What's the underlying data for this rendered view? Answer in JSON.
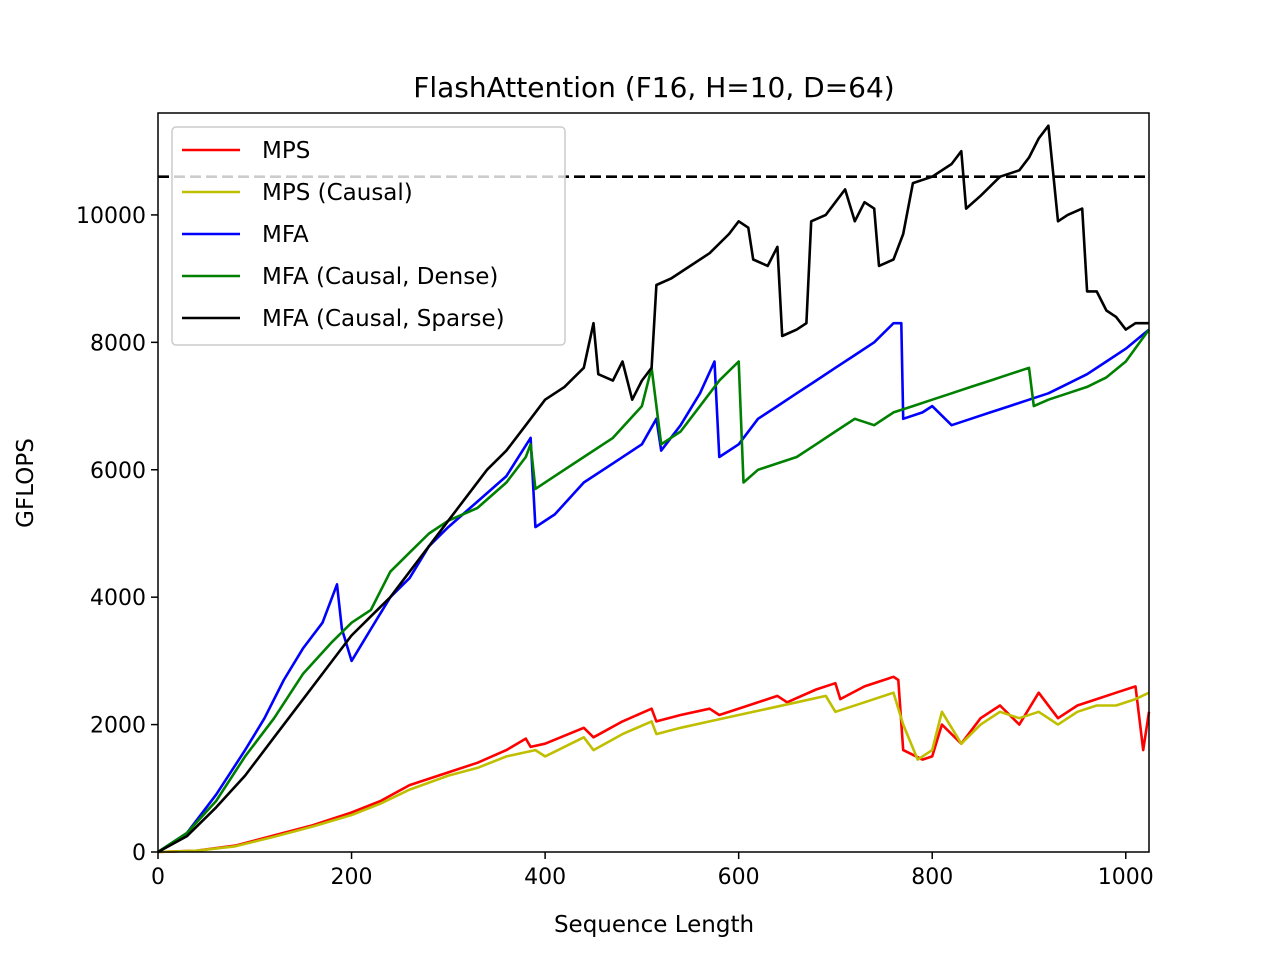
{
  "chart_data": {
    "type": "line",
    "title": "FlashAttention (F16, H=10, D=64)",
    "xlabel": "Sequence Length",
    "ylabel": "GFLOPS",
    "xlim": [
      0,
      1024
    ],
    "ylim": [
      0,
      11600
    ],
    "xticks": [
      0,
      200,
      400,
      600,
      800,
      1000
    ],
    "yticks": [
      0,
      2000,
      4000,
      6000,
      8000,
      10000
    ],
    "xtick_labels": [
      "0",
      "200",
      "400",
      "600",
      "800",
      "1000"
    ],
    "ytick_labels": [
      "0",
      "2000",
      "4000",
      "6000",
      "8000",
      "10000"
    ],
    "grid": false,
    "legend_position": "upper left",
    "reference_line": {
      "y": 10600,
      "style": "dashed",
      "color": "#000000"
    },
    "series": [
      {
        "name": "MPS",
        "color": "#ff0000",
        "points": [
          [
            0,
            0
          ],
          [
            40,
            20
          ],
          [
            80,
            100
          ],
          [
            120,
            260
          ],
          [
            160,
            420
          ],
          [
            200,
            620
          ],
          [
            230,
            800
          ],
          [
            260,
            1050
          ],
          [
            300,
            1250
          ],
          [
            330,
            1400
          ],
          [
            360,
            1600
          ],
          [
            380,
            1780
          ],
          [
            385,
            1650
          ],
          [
            400,
            1700
          ],
          [
            440,
            1950
          ],
          [
            450,
            1800
          ],
          [
            480,
            2050
          ],
          [
            510,
            2250
          ],
          [
            515,
            2050
          ],
          [
            540,
            2150
          ],
          [
            570,
            2250
          ],
          [
            580,
            2150
          ],
          [
            610,
            2300
          ],
          [
            640,
            2450
          ],
          [
            650,
            2350
          ],
          [
            680,
            2550
          ],
          [
            700,
            2650
          ],
          [
            705,
            2400
          ],
          [
            730,
            2600
          ],
          [
            760,
            2750
          ],
          [
            765,
            2700
          ],
          [
            770,
            1600
          ],
          [
            790,
            1450
          ],
          [
            800,
            1500
          ],
          [
            810,
            2000
          ],
          [
            830,
            1700
          ],
          [
            850,
            2100
          ],
          [
            870,
            2300
          ],
          [
            890,
            2000
          ],
          [
            910,
            2500
          ],
          [
            930,
            2100
          ],
          [
            950,
            2300
          ],
          [
            970,
            2400
          ],
          [
            990,
            2500
          ],
          [
            1010,
            2600
          ],
          [
            1018,
            1600
          ],
          [
            1024,
            2200
          ]
        ]
      },
      {
        "name": "MPS (Causal)",
        "color": "#bfbf00",
        "points": [
          [
            0,
            0
          ],
          [
            40,
            20
          ],
          [
            80,
            90
          ],
          [
            120,
            240
          ],
          [
            160,
            400
          ],
          [
            200,
            580
          ],
          [
            230,
            760
          ],
          [
            260,
            980
          ],
          [
            300,
            1200
          ],
          [
            330,
            1320
          ],
          [
            360,
            1500
          ],
          [
            390,
            1600
          ],
          [
            400,
            1500
          ],
          [
            440,
            1800
          ],
          [
            450,
            1600
          ],
          [
            480,
            1850
          ],
          [
            510,
            2050
          ],
          [
            515,
            1850
          ],
          [
            540,
            1950
          ],
          [
            570,
            2050
          ],
          [
            600,
            2150
          ],
          [
            630,
            2250
          ],
          [
            660,
            2350
          ],
          [
            690,
            2450
          ],
          [
            700,
            2200
          ],
          [
            730,
            2350
          ],
          [
            760,
            2500
          ],
          [
            770,
            2000
          ],
          [
            785,
            1450
          ],
          [
            800,
            1600
          ],
          [
            810,
            2200
          ],
          [
            830,
            1700
          ],
          [
            850,
            2000
          ],
          [
            870,
            2200
          ],
          [
            890,
            2100
          ],
          [
            910,
            2200
          ],
          [
            930,
            2000
          ],
          [
            950,
            2200
          ],
          [
            970,
            2300
          ],
          [
            990,
            2300
          ],
          [
            1010,
            2400
          ],
          [
            1024,
            2500
          ]
        ]
      },
      {
        "name": "MFA",
        "color": "#0000ff",
        "points": [
          [
            0,
            0
          ],
          [
            30,
            300
          ],
          [
            60,
            900
          ],
          [
            90,
            1600
          ],
          [
            110,
            2100
          ],
          [
            130,
            2700
          ],
          [
            150,
            3200
          ],
          [
            170,
            3600
          ],
          [
            185,
            4200
          ],
          [
            190,
            3500
          ],
          [
            200,
            3000
          ],
          [
            220,
            3500
          ],
          [
            240,
            4000
          ],
          [
            260,
            4300
          ],
          [
            280,
            4800
          ],
          [
            300,
            5100
          ],
          [
            330,
            5500
          ],
          [
            360,
            5900
          ],
          [
            385,
            6500
          ],
          [
            390,
            5100
          ],
          [
            410,
            5300
          ],
          [
            440,
            5800
          ],
          [
            470,
            6100
          ],
          [
            500,
            6400
          ],
          [
            515,
            6800
          ],
          [
            520,
            6300
          ],
          [
            540,
            6700
          ],
          [
            560,
            7200
          ],
          [
            575,
            7700
          ],
          [
            580,
            6200
          ],
          [
            600,
            6400
          ],
          [
            620,
            6800
          ],
          [
            640,
            7000
          ],
          [
            660,
            7200
          ],
          [
            680,
            7400
          ],
          [
            700,
            7600
          ],
          [
            720,
            7800
          ],
          [
            740,
            8000
          ],
          [
            760,
            8300
          ],
          [
            768,
            8300
          ],
          [
            770,
            6800
          ],
          [
            790,
            6900
          ],
          [
            800,
            7000
          ],
          [
            820,
            6700
          ],
          [
            840,
            6800
          ],
          [
            860,
            6900
          ],
          [
            880,
            7000
          ],
          [
            900,
            7100
          ],
          [
            920,
            7200
          ],
          [
            940,
            7350
          ],
          [
            960,
            7500
          ],
          [
            980,
            7700
          ],
          [
            1000,
            7900
          ],
          [
            1024,
            8200
          ]
        ]
      },
      {
        "name": "MFA (Causal, Dense)",
        "color": "#008000",
        "points": [
          [
            0,
            0
          ],
          [
            30,
            300
          ],
          [
            60,
            800
          ],
          [
            90,
            1500
          ],
          [
            120,
            2100
          ],
          [
            150,
            2800
          ],
          [
            180,
            3300
          ],
          [
            200,
            3600
          ],
          [
            220,
            3800
          ],
          [
            240,
            4400
          ],
          [
            260,
            4700
          ],
          [
            280,
            5000
          ],
          [
            300,
            5200
          ],
          [
            330,
            5400
          ],
          [
            360,
            5800
          ],
          [
            380,
            6200
          ],
          [
            385,
            6400
          ],
          [
            390,
            5700
          ],
          [
            410,
            5900
          ],
          [
            440,
            6200
          ],
          [
            470,
            6500
          ],
          [
            500,
            7000
          ],
          [
            510,
            7600
          ],
          [
            520,
            6400
          ],
          [
            540,
            6600
          ],
          [
            560,
            7000
          ],
          [
            580,
            7400
          ],
          [
            600,
            7700
          ],
          [
            605,
            5800
          ],
          [
            620,
            6000
          ],
          [
            640,
            6100
          ],
          [
            660,
            6200
          ],
          [
            680,
            6400
          ],
          [
            700,
            6600
          ],
          [
            720,
            6800
          ],
          [
            740,
            6700
          ],
          [
            760,
            6900
          ],
          [
            780,
            7000
          ],
          [
            800,
            7100
          ],
          [
            820,
            7200
          ],
          [
            840,
            7300
          ],
          [
            860,
            7400
          ],
          [
            880,
            7500
          ],
          [
            900,
            7600
          ],
          [
            905,
            7000
          ],
          [
            920,
            7100
          ],
          [
            940,
            7200
          ],
          [
            960,
            7300
          ],
          [
            980,
            7450
          ],
          [
            1000,
            7700
          ],
          [
            1024,
            8200
          ]
        ]
      },
      {
        "name": "MFA (Causal, Sparse)",
        "color": "#000000",
        "points": [
          [
            0,
            0
          ],
          [
            30,
            250
          ],
          [
            60,
            700
          ],
          [
            90,
            1200
          ],
          [
            120,
            1800
          ],
          [
            150,
            2400
          ],
          [
            180,
            3000
          ],
          [
            200,
            3400
          ],
          [
            220,
            3700
          ],
          [
            240,
            4000
          ],
          [
            260,
            4400
          ],
          [
            280,
            4800
          ],
          [
            300,
            5200
          ],
          [
            320,
            5600
          ],
          [
            340,
            6000
          ],
          [
            360,
            6300
          ],
          [
            380,
            6700
          ],
          [
            400,
            7100
          ],
          [
            420,
            7300
          ],
          [
            440,
            7600
          ],
          [
            450,
            8300
          ],
          [
            455,
            7500
          ],
          [
            470,
            7400
          ],
          [
            480,
            7700
          ],
          [
            490,
            7100
          ],
          [
            500,
            7400
          ],
          [
            510,
            7600
          ],
          [
            515,
            8900
          ],
          [
            530,
            9000
          ],
          [
            550,
            9200
          ],
          [
            570,
            9400
          ],
          [
            590,
            9700
          ],
          [
            600,
            9900
          ],
          [
            610,
            9800
          ],
          [
            615,
            9300
          ],
          [
            630,
            9200
          ],
          [
            640,
            9500
          ],
          [
            645,
            8100
          ],
          [
            660,
            8200
          ],
          [
            670,
            8300
          ],
          [
            675,
            9900
          ],
          [
            690,
            10000
          ],
          [
            700,
            10200
          ],
          [
            710,
            10400
          ],
          [
            720,
            9900
          ],
          [
            730,
            10200
          ],
          [
            740,
            10100
          ],
          [
            745,
            9200
          ],
          [
            760,
            9300
          ],
          [
            770,
            9700
          ],
          [
            780,
            10500
          ],
          [
            800,
            10600
          ],
          [
            820,
            10800
          ],
          [
            830,
            11000
          ],
          [
            835,
            10100
          ],
          [
            850,
            10300
          ],
          [
            870,
            10600
          ],
          [
            890,
            10700
          ],
          [
            900,
            10900
          ],
          [
            910,
            11200
          ],
          [
            920,
            11400
          ],
          [
            930,
            9900
          ],
          [
            940,
            10000
          ],
          [
            955,
            10100
          ],
          [
            960,
            8800
          ],
          [
            970,
            8800
          ],
          [
            980,
            8500
          ],
          [
            990,
            8400
          ],
          [
            1000,
            8200
          ],
          [
            1010,
            8300
          ],
          [
            1024,
            8300
          ]
        ]
      }
    ]
  }
}
